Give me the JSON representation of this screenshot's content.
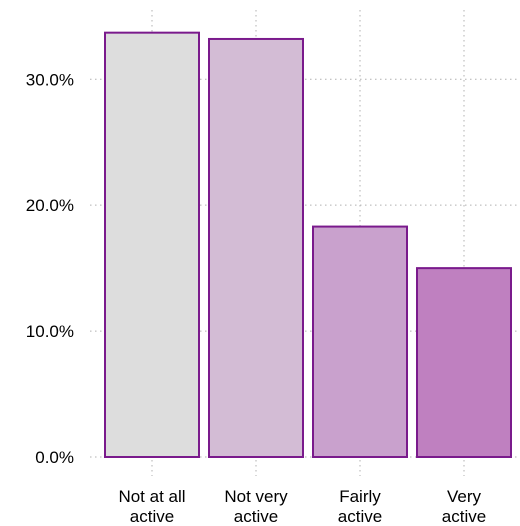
{
  "chart_data": {
    "type": "bar",
    "categories": [
      [
        "Not at all",
        "active"
      ],
      [
        "Not very",
        "active"
      ],
      [
        "Fairly",
        "active"
      ],
      [
        "Very",
        "active"
      ]
    ],
    "values": [
      33.7,
      33.2,
      18.3,
      15.0
    ],
    "ylim": [
      0,
      35.5
    ],
    "yticks": [
      {
        "value": 0,
        "label": "0.0%"
      },
      {
        "value": 10,
        "label": "10.0%"
      },
      {
        "value": 20,
        "label": "20.0%"
      },
      {
        "value": 30,
        "label": "30.0%"
      }
    ],
    "bar_colors": [
      "#dddddd",
      "#d3bcd5",
      "#c9a1cd",
      "#bf80c0"
    ],
    "bar_edge_color": "#7a1a8c",
    "grid": true,
    "title": "",
    "xlabel": "",
    "ylabel": ""
  }
}
